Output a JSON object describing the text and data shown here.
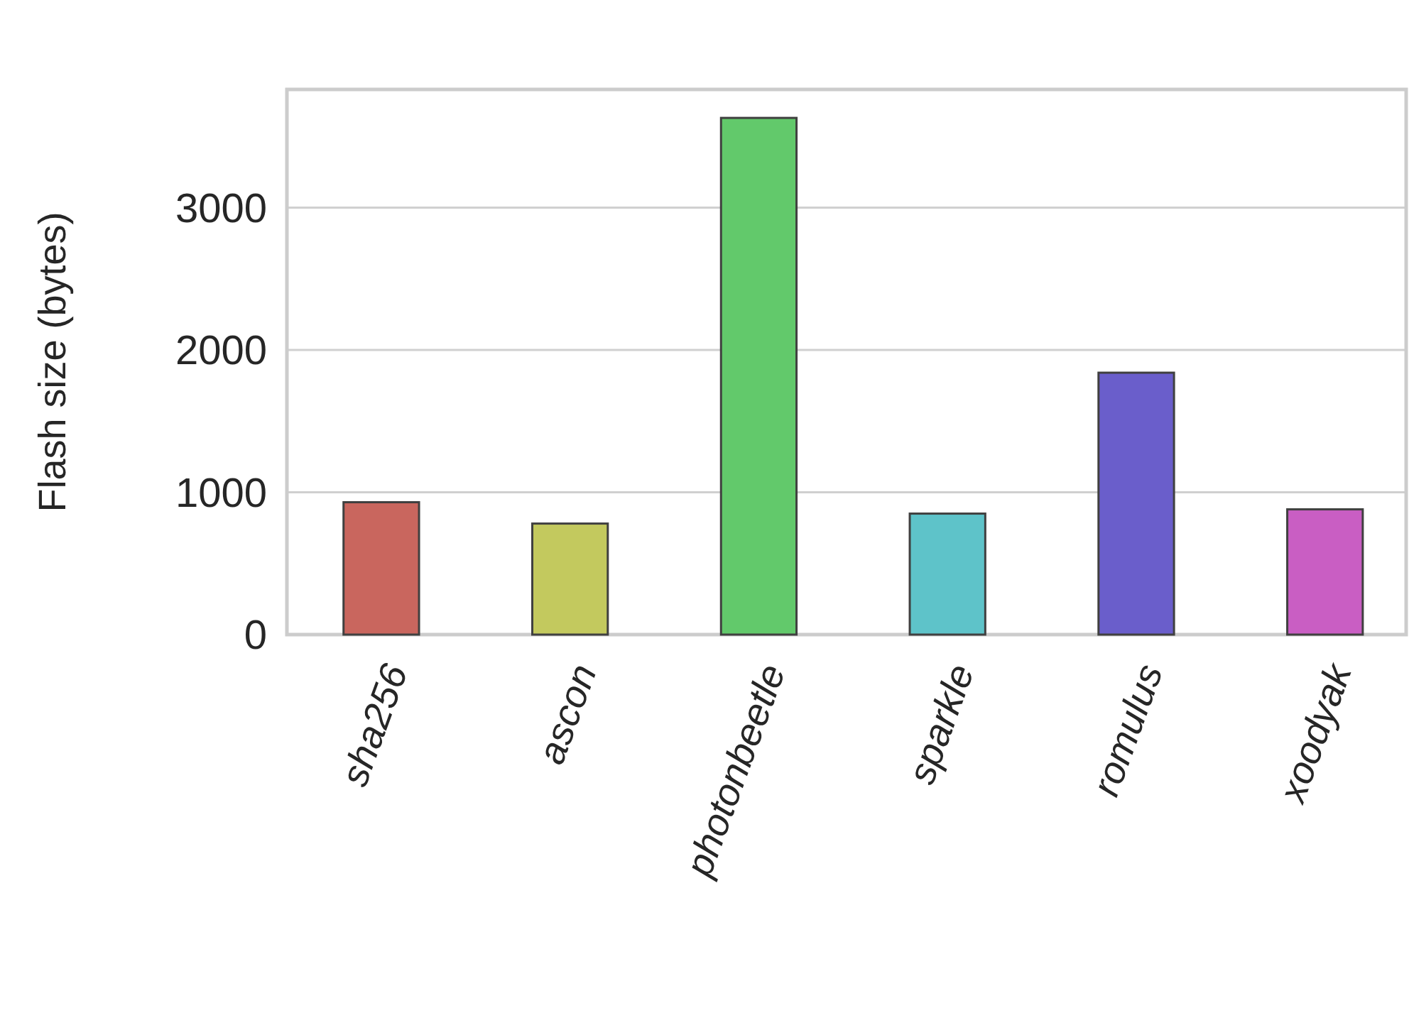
{
  "chart_data": {
    "type": "bar",
    "ylabel": "Flash size (bytes)",
    "categories": [
      "sha256",
      "ascon",
      "photonbeetle",
      "sparkle",
      "romulus",
      "xoodyak"
    ],
    "values": [
      930,
      780,
      3630,
      850,
      1840,
      880
    ],
    "colors": [
      "#c9665e",
      "#c3c95e",
      "#62c96b",
      "#5ec3c9",
      "#6a5ecb",
      "#c95ec3"
    ],
    "ylim": [
      0,
      3830
    ],
    "yticks": [
      0,
      1000,
      2000,
      3000
    ],
    "grid": "y"
  }
}
